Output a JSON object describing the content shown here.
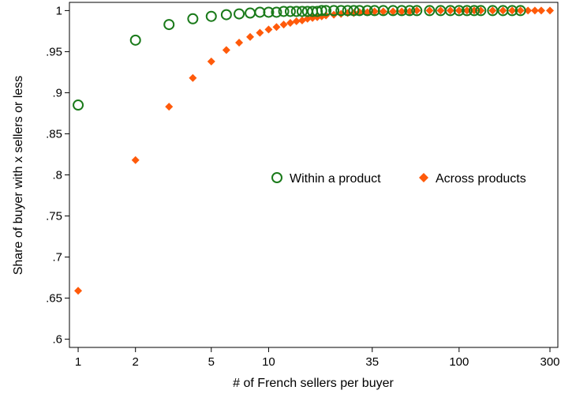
{
  "chart_data": {
    "type": "scatter",
    "xscale": "log",
    "xlabel": "# of French sellers per buyer",
    "ylabel": "Share of buyer with x sellers or less",
    "xlim": [
      0.9,
      330
    ],
    "ylim": [
      0.59,
      1.01
    ],
    "x_ticks": [
      1,
      2,
      5,
      10,
      35,
      100,
      300
    ],
    "x_tick_labels": [
      "1",
      "2",
      "5",
      "10",
      "35",
      "100",
      "300"
    ],
    "y_ticks": [
      0.6,
      0.65,
      0.7,
      0.75,
      0.8,
      0.85,
      0.9,
      0.95,
      1.0
    ],
    "y_tick_labels": [
      ".6",
      ".65",
      ".7",
      ".75",
      ".8",
      ".85",
      ".9",
      ".95",
      "1"
    ],
    "grid": false,
    "legend_position": "middle-right",
    "colors": {
      "within": "#1a7a1a",
      "across": "#ff5a0a"
    },
    "series": [
      {
        "name": "Within a product",
        "marker": "hollow-circle",
        "x": [
          1,
          2,
          3,
          4,
          5,
          6,
          7,
          8,
          9,
          10,
          11,
          12,
          13,
          14,
          15,
          16,
          17,
          18,
          19,
          20,
          22,
          24,
          26,
          28,
          30,
          33,
          36,
          40,
          45,
          50,
          55,
          60,
          70,
          80,
          90,
          100,
          110,
          120,
          130,
          150,
          170,
          190,
          210
        ],
        "y": [
          0.885,
          0.964,
          0.983,
          0.99,
          0.993,
          0.995,
          0.996,
          0.997,
          0.998,
          0.998,
          0.998,
          0.999,
          0.999,
          0.999,
          0.999,
          0.999,
          0.999,
          0.999,
          1,
          1,
          1,
          1,
          1,
          1,
          1,
          1,
          1,
          1,
          1,
          1,
          1,
          1,
          1,
          1,
          1,
          1,
          1,
          1,
          1,
          1,
          1,
          1,
          1
        ]
      },
      {
        "name": "Across products",
        "marker": "diamond",
        "x": [
          1,
          2,
          3,
          4,
          5,
          6,
          7,
          8,
          9,
          10,
          11,
          12,
          13,
          14,
          15,
          16,
          17,
          18,
          19,
          20,
          22,
          24,
          26,
          28,
          30,
          33,
          36,
          40,
          45,
          50,
          55,
          60,
          70,
          80,
          90,
          100,
          110,
          120,
          130,
          150,
          170,
          190,
          210,
          230,
          250,
          270,
          300
        ],
        "y": [
          0.659,
          0.818,
          0.883,
          0.918,
          0.938,
          0.952,
          0.961,
          0.968,
          0.973,
          0.977,
          0.98,
          0.983,
          0.985,
          0.987,
          0.988,
          0.99,
          0.991,
          0.992,
          0.993,
          0.994,
          0.995,
          0.996,
          0.997,
          0.997,
          0.998,
          0.998,
          0.999,
          0.999,
          0.999,
          0.999,
          0.999,
          1,
          1,
          1,
          1,
          1,
          1,
          1,
          1,
          1,
          1,
          1,
          1,
          1,
          1,
          1,
          1
        ]
      }
    ]
  }
}
